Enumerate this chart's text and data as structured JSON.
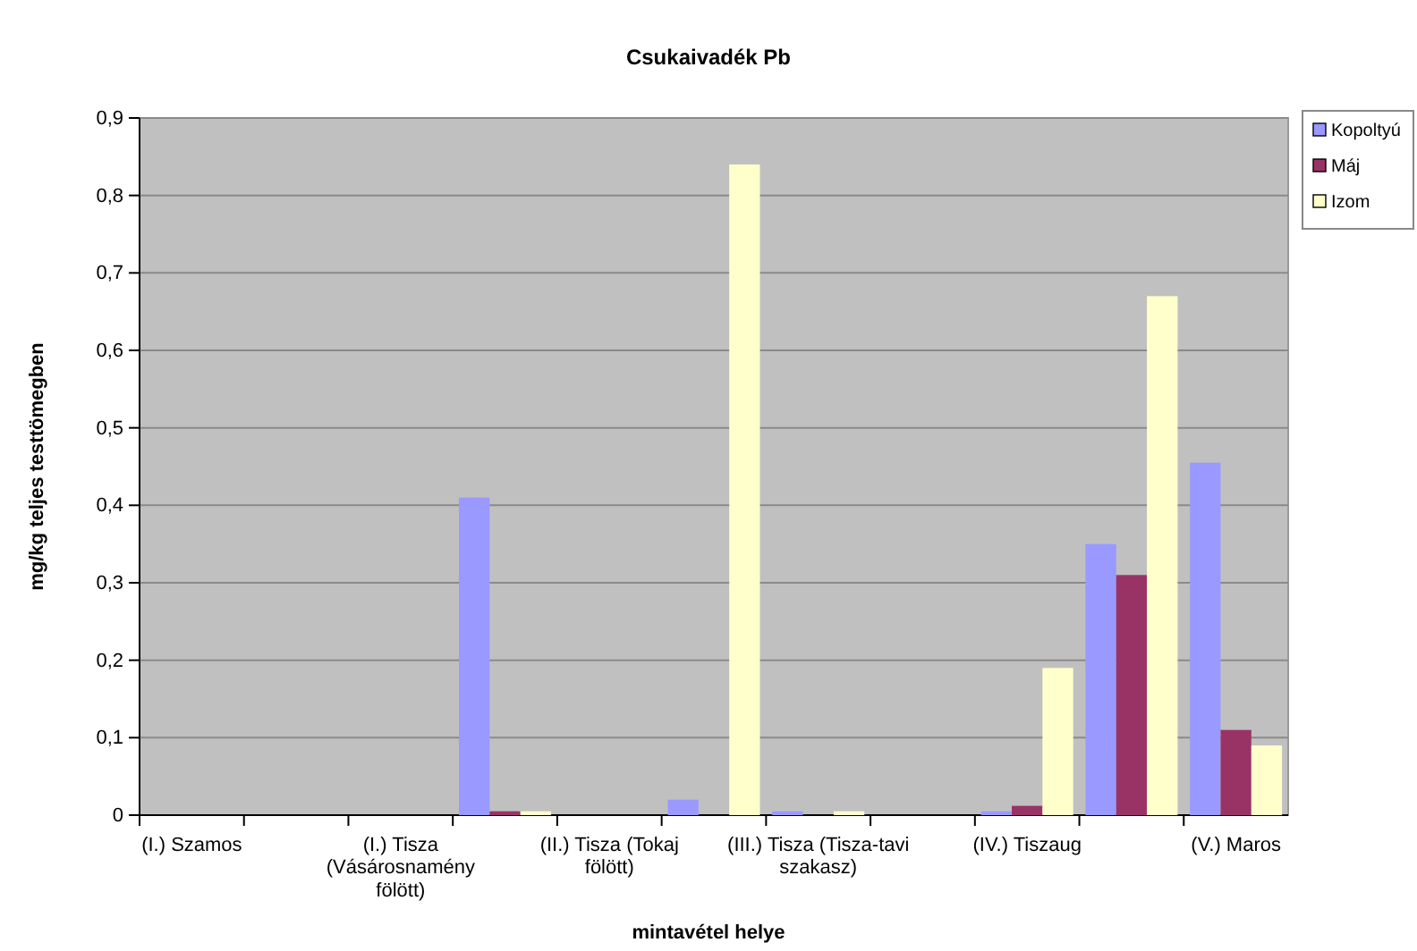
{
  "chart_data": {
    "type": "bar",
    "title": "Csukaivadék Pb",
    "xlabel": "mintavétel helye",
    "ylabel": "mg/kg teljes testtömegben",
    "categories": [
      "(I.) Szamos",
      null,
      "(I.) Tisza (Vásárosnamény fölött)",
      null,
      "(II.) Tisza (Tokaj fölött)",
      null,
      "(III.) Tisza (Tisza-tavi szakasz)",
      null,
      "(IV.) Tiszaug",
      null,
      "(V.) Maros"
    ],
    "series": [
      {
        "name": "Kopoltyú",
        "color": "#9999ff",
        "values": [
          null,
          null,
          null,
          0.41,
          null,
          0.02,
          0.005,
          null,
          0.005,
          0.35,
          0.455
        ]
      },
      {
        "name": "Máj",
        "color": "#993366",
        "values": [
          null,
          null,
          null,
          0.005,
          null,
          null,
          null,
          null,
          0.012,
          0.31,
          0.11
        ]
      },
      {
        "name": "Izom",
        "color": "#ffffcc",
        "values": [
          null,
          null,
          null,
          0.005,
          null,
          0.84,
          0.005,
          null,
          0.19,
          0.67,
          0.09
        ]
      }
    ],
    "ylim": [
      0,
      0.9
    ],
    "yticks": [
      0,
      {
        "value": 0.1,
        "label": "0,1"
      },
      {
        "value": 0.2,
        "label": "0,2"
      },
      {
        "value": 0.3,
        "label": "0,3"
      },
      {
        "value": 0.4,
        "label": "0,4"
      },
      {
        "value": 0.5,
        "label": "0,5"
      },
      {
        "value": 0.6,
        "label": "0,6"
      },
      {
        "value": 0.7,
        "label": "0,7"
      },
      {
        "value": 0.8,
        "label": "0,8"
      },
      {
        "value": 0.9,
        "label": "0,9"
      }
    ],
    "grid": "y",
    "legend": "top right"
  }
}
